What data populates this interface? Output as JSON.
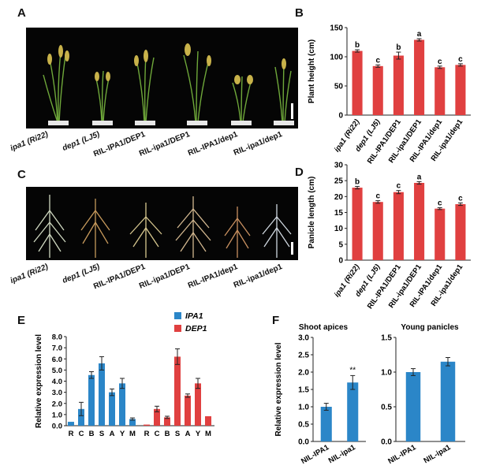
{
  "panels": {
    "A": "A",
    "B": "B",
    "C": "C",
    "D": "D",
    "E": "E",
    "F": "F"
  },
  "lines": [
    "ipa1 (Ri22)",
    "dep1 (LJ5)",
    "RIL-IPA1/DEP1",
    "RIL-ipa1/DEP1",
    "RIL-IPA1/dep1",
    "RIL-ipa1/dep1"
  ],
  "colors": {
    "red": "#e04040",
    "blue": "#2b86c8",
    "photo_bg": "#050505"
  },
  "chart_data": [
    {
      "id": "B",
      "type": "bar",
      "title": "",
      "xlabel": "",
      "ylabel": "Plant height (cm)",
      "ylim": [
        0,
        150
      ],
      "yticks": [
        0,
        50,
        100,
        150
      ],
      "categories": [
        "ipa1 (Ri22)",
        "dep1 (LJ5)",
        "RIL-IPA1/DEP1",
        "RIL-ipa1/DEP1",
        "RIL-IPA1/dep1",
        "RIL-ipa1/dep1"
      ],
      "values": [
        110,
        84,
        102,
        129,
        82,
        86
      ],
      "errors": [
        2,
        2,
        6,
        2,
        2,
        2
      ],
      "letters": [
        "b",
        "c",
        "b",
        "a",
        "c",
        "c"
      ],
      "color": "#e04040"
    },
    {
      "id": "D",
      "type": "bar",
      "title": "",
      "xlabel": "",
      "ylabel": "Panicle length (cm)",
      "ylim": [
        0,
        30
      ],
      "yticks": [
        0,
        5,
        10,
        15,
        20,
        25,
        30
      ],
      "categories": [
        "ipa1 (Ri22)",
        "dep1 (LJ5)",
        "RIL-IPA1/DEP1",
        "RIL-ipa1/DEP1",
        "RIL-IPA1/dep1",
        "RIL-ipa1/dep1"
      ],
      "values": [
        22.8,
        18.3,
        21.4,
        24.3,
        16.2,
        17.6
      ],
      "errors": [
        0.4,
        0.4,
        0.5,
        0.4,
        0.3,
        0.4
      ],
      "letters": [
        "b",
        "c",
        "c",
        "a",
        "c",
        "c"
      ],
      "color": "#e04040"
    },
    {
      "id": "E",
      "type": "bar",
      "title": "",
      "xlabel": "",
      "ylabel": "Relative expression level",
      "ylim": [
        0,
        8
      ],
      "yticks": [
        "0.0",
        "1.0",
        "2.0",
        "3.0",
        "4.0",
        "5.0",
        "6.0",
        "7.0",
        "8.0"
      ],
      "categories": [
        "R",
        "C",
        "B",
        "S",
        "A",
        "Y",
        "M"
      ],
      "series": [
        {
          "name": "IPA1",
          "color": "#2b86c8",
          "values": [
            0.35,
            1.5,
            4.55,
            5.6,
            3.0,
            3.8,
            0.6
          ],
          "errors": [
            0,
            0.6,
            0.3,
            0.6,
            0.3,
            0.45,
            0.1
          ]
        },
        {
          "name": "DEP1",
          "color": "#e04040",
          "values": [
            0.1,
            1.5,
            0.75,
            6.2,
            2.7,
            3.8,
            0.85
          ],
          "errors": [
            0,
            0.25,
            0.1,
            0.7,
            0.15,
            0.45,
            0
          ]
        }
      ]
    },
    {
      "id": "F1",
      "type": "bar",
      "title": "Shoot apices",
      "xlabel": "",
      "ylabel": "Relative expression level",
      "ylim": [
        0,
        3
      ],
      "yticks": [
        "0.0",
        "0.5",
        "1.0",
        "1.5",
        "2.0",
        "2.5",
        "3.0"
      ],
      "categories": [
        "NIL-IPA1",
        "NIL-ipa1"
      ],
      "values": [
        1.0,
        1.7
      ],
      "errors": [
        0.1,
        0.2
      ],
      "annotations": [
        "",
        "**"
      ],
      "color": "#2b86c8"
    },
    {
      "id": "F2",
      "type": "bar",
      "title": "Young panicles",
      "xlabel": "",
      "ylabel": "",
      "ylim": [
        0,
        1.5
      ],
      "yticks": [
        "0.0",
        "0.5",
        "1.0",
        "1.5"
      ],
      "categories": [
        "NIL-IPA1",
        "NIL-ipa1"
      ],
      "values": [
        1.0,
        1.15
      ],
      "errors": [
        0.05,
        0.06
      ],
      "annotations": [
        "",
        ""
      ],
      "color": "#2b86c8"
    }
  ]
}
